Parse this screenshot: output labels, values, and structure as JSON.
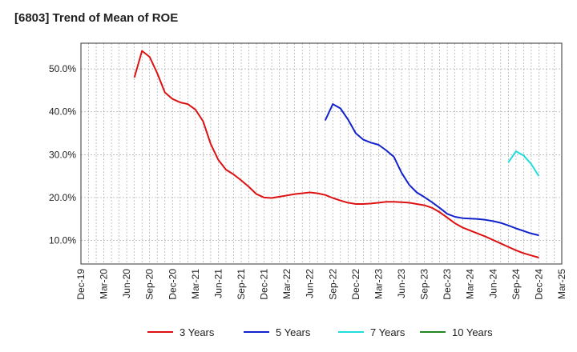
{
  "title": "[6803]  Trend of Mean of ROE",
  "chart_data": {
    "type": "line",
    "title": "[6803]  Trend of Mean of ROE",
    "xlabel": "",
    "ylabel": "",
    "ylim": [
      4.5,
      56.0
    ],
    "y_ticks": [
      10.0,
      20.0,
      30.0,
      40.0,
      50.0
    ],
    "y_tick_labels": [
      "10.0%",
      "20.0%",
      "30.0%",
      "40.0%",
      "50.0%"
    ],
    "x_ticks": [
      "Dec-19",
      "Mar-20",
      "Jun-20",
      "Sep-20",
      "Dec-20",
      "Mar-21",
      "Jun-21",
      "Sep-21",
      "Dec-21",
      "Mar-22",
      "Jun-22",
      "Sep-22",
      "Dec-22",
      "Mar-23",
      "Jun-23",
      "Sep-23",
      "Dec-23",
      "Mar-24",
      "Jun-24",
      "Sep-24",
      "Dec-24",
      "Mar-25"
    ],
    "grid": true,
    "legend_position": "bottom",
    "series": [
      {
        "name": "3 Years",
        "color": "#dd1111",
        "x": [
          "Jul-20",
          "Aug-20",
          "Sep-20",
          "Oct-20",
          "Nov-20",
          "Dec-20",
          "Jan-21",
          "Feb-21",
          "Mar-21",
          "Apr-21",
          "May-21",
          "Jun-21",
          "Jul-21",
          "Aug-21",
          "Sep-21",
          "Oct-21",
          "Nov-21",
          "Dec-21",
          "Jan-22",
          "Feb-22",
          "Mar-22",
          "Apr-22",
          "May-22",
          "Jun-22",
          "Jul-22",
          "Aug-22",
          "Sep-22",
          "Oct-22",
          "Nov-22",
          "Dec-22",
          "Jan-23",
          "Feb-23",
          "Mar-23",
          "Apr-23",
          "May-23",
          "Jun-23",
          "Jul-23",
          "Aug-23",
          "Sep-23",
          "Oct-23",
          "Nov-23",
          "Dec-23",
          "Jan-24",
          "Feb-24",
          "Mar-24",
          "Apr-24",
          "May-24",
          "Jun-24",
          "Jul-24",
          "Aug-24",
          "Sep-24",
          "Oct-24",
          "Nov-24",
          "Dec-24"
        ],
        "values": [
          48.0,
          54.2,
          52.8,
          49.0,
          44.5,
          43.0,
          42.2,
          41.8,
          40.5,
          37.8,
          32.5,
          28.8,
          26.5,
          25.4,
          24.0,
          22.5,
          20.8,
          20.0,
          19.9,
          20.2,
          20.5,
          20.8,
          21.0,
          21.2,
          21.0,
          20.6,
          19.9,
          19.3,
          18.8,
          18.5,
          18.5,
          18.6,
          18.8,
          19.0,
          19.0,
          18.9,
          18.8,
          18.5,
          18.2,
          17.6,
          16.6,
          15.3,
          14.0,
          13.0,
          12.3,
          11.6,
          10.9,
          10.1,
          9.3,
          8.5,
          7.7,
          7.0,
          6.5,
          6.0
        ]
      },
      {
        "name": "5 Years",
        "color": "#1122cc",
        "x": [
          "Aug-22",
          "Sep-22",
          "Oct-22",
          "Nov-22",
          "Dec-22",
          "Jan-23",
          "Feb-23",
          "Mar-23",
          "Apr-23",
          "May-23",
          "Jun-23",
          "Jul-23",
          "Aug-23",
          "Sep-23",
          "Oct-23",
          "Nov-23",
          "Dec-23",
          "Jan-24",
          "Feb-24",
          "Mar-24",
          "Apr-24",
          "May-24",
          "Jun-24",
          "Jul-24",
          "Aug-24",
          "Sep-24",
          "Oct-24",
          "Nov-24",
          "Dec-24"
        ],
        "values": [
          38.0,
          41.8,
          40.8,
          38.2,
          35.0,
          33.5,
          32.8,
          32.3,
          31.0,
          29.5,
          25.8,
          23.0,
          21.2,
          20.1,
          18.9,
          17.6,
          16.2,
          15.5,
          15.2,
          15.1,
          15.0,
          14.8,
          14.5,
          14.1,
          13.5,
          12.8,
          12.2,
          11.6,
          11.2
        ]
      },
      {
        "name": "7 Years",
        "color": "#22dddd",
        "x": [
          "Aug-24",
          "Sep-24",
          "Oct-24",
          "Nov-24",
          "Dec-24"
        ],
        "values": [
          28.2,
          30.8,
          29.8,
          27.8,
          25.0
        ]
      },
      {
        "name": "10 Years",
        "color": "#228822",
        "x": [],
        "values": []
      }
    ]
  }
}
